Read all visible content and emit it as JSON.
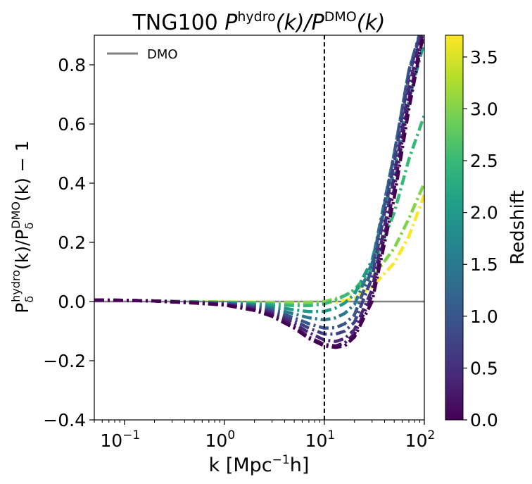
{
  "chart_data": {
    "type": "line",
    "title": {
      "prefix": "TNG100 ",
      "p1": "P",
      "sup1": "hydro",
      "k1": "(k)/",
      "p2": "P",
      "sup2": "DMO",
      "k2": "(k)"
    },
    "xlabel": {
      "pre": "k [Mpc",
      "sup": "−1",
      "post": "h]"
    },
    "ylabel": {
      "p1": "P",
      "sub1": "δ",
      "sup1": "hydro",
      "mid": "(k)/P",
      "sub2": "δ",
      "sup2": "DMO",
      "post": "(k) − 1"
    },
    "x_scale": "log",
    "xlim": [
      0.05,
      100
    ],
    "ylim": [
      -0.4,
      0.9
    ],
    "x_ticks": [
      {
        "value": 0.1,
        "base": "10",
        "exp": "−1"
      },
      {
        "value": 1,
        "base": "10",
        "exp": "0"
      },
      {
        "value": 10,
        "base": "10",
        "exp": "1"
      },
      {
        "value": 100,
        "base": "10",
        "exp": "2"
      }
    ],
    "y_ticks": [
      {
        "value": -0.4,
        "label": "−0.4"
      },
      {
        "value": -0.2,
        "label": "−0.2"
      },
      {
        "value": 0.0,
        "label": "0.0"
      },
      {
        "value": 0.2,
        "label": "0.2"
      },
      {
        "value": 0.4,
        "label": "0.4"
      },
      {
        "value": 0.6,
        "label": "0.6"
      },
      {
        "value": 0.8,
        "label": "0.8"
      }
    ],
    "reference_lines": [
      {
        "orientation": "horizontal",
        "value": 0,
        "color": "#808080",
        "style": "solid"
      },
      {
        "orientation": "vertical",
        "value": 10,
        "color": "#000000",
        "style": "dashed"
      }
    ],
    "legend": {
      "position": "top-left",
      "entries": [
        {
          "label": "DMO",
          "color": "#808080"
        }
      ]
    },
    "colorbar": {
      "label": "Redshift",
      "range": [
        0,
        3.71
      ],
      "ticks": [
        "0.0",
        "0.5",
        "1.0",
        "1.5",
        "2.0",
        "2.5",
        "3.0",
        "3.5"
      ],
      "tick_values": [
        0,
        0.5,
        1.0,
        1.5,
        2.0,
        2.5,
        3.0,
        3.5
      ],
      "colormap": [
        "#440154",
        "#482878",
        "#3e4989",
        "#31688e",
        "#26828e",
        "#1f9e89",
        "#35b779",
        "#6ece58",
        "#b5de2b",
        "#fde725"
      ]
    },
    "line_style": "dashdot",
    "x": [
      0.05,
      0.1,
      0.2,
      0.5,
      1,
      2,
      3,
      5,
      7,
      10,
      13,
      16,
      20,
      30,
      50,
      70,
      100
    ],
    "series": [
      {
        "z": 0.0,
        "values": [
          0.005,
          0.004,
          0.002,
          -0.005,
          -0.012,
          -0.03,
          -0.05,
          -0.09,
          -0.125,
          -0.15,
          -0.155,
          -0.15,
          -0.12,
          0.0,
          0.35,
          0.65,
          0.92
        ]
      },
      {
        "z": 0.2,
        "values": [
          0.005,
          0.004,
          0.002,
          -0.005,
          -0.011,
          -0.028,
          -0.045,
          -0.085,
          -0.12,
          -0.145,
          -0.15,
          -0.14,
          -0.11,
          0.02,
          0.38,
          0.68,
          0.93
        ]
      },
      {
        "z": 0.4,
        "values": [
          0.005,
          0.004,
          0.002,
          -0.004,
          -0.01,
          -0.025,
          -0.04,
          -0.075,
          -0.105,
          -0.13,
          -0.135,
          -0.125,
          -0.095,
          0.04,
          0.42,
          0.72,
          0.95
        ]
      },
      {
        "z": 0.7,
        "values": [
          0.005,
          0.004,
          0.002,
          -0.004,
          -0.009,
          -0.021,
          -0.035,
          -0.065,
          -0.09,
          -0.11,
          -0.11,
          -0.1,
          -0.07,
          0.08,
          0.47,
          0.76,
          0.96
        ]
      },
      {
        "z": 1.0,
        "values": [
          0.005,
          0.004,
          0.002,
          -0.003,
          -0.007,
          -0.018,
          -0.03,
          -0.055,
          -0.075,
          -0.09,
          -0.088,
          -0.075,
          -0.045,
          0.11,
          0.5,
          0.78,
          0.96
        ]
      },
      {
        "z": 1.5,
        "values": [
          0.005,
          0.004,
          0.002,
          -0.002,
          -0.005,
          -0.014,
          -0.023,
          -0.042,
          -0.055,
          -0.062,
          -0.055,
          -0.04,
          -0.01,
          0.13,
          0.5,
          0.78,
          0.95
        ]
      },
      {
        "z": 2.0,
        "values": [
          0.005,
          0.004,
          0.002,
          -0.002,
          -0.004,
          -0.01,
          -0.016,
          -0.028,
          -0.034,
          -0.033,
          -0.022,
          -0.005,
          0.025,
          0.14,
          0.44,
          0.68,
          0.88
        ]
      },
      {
        "z": 2.5,
        "values": [
          0.005,
          0.004,
          0.002,
          -0.001,
          -0.003,
          -0.006,
          -0.009,
          -0.014,
          -0.014,
          -0.008,
          0.005,
          0.02,
          0.04,
          0.11,
          0.3,
          0.48,
          0.63
        ]
      },
      {
        "z": 3.0,
        "values": [
          0.005,
          0.004,
          0.002,
          -0.001,
          -0.002,
          -0.003,
          -0.004,
          -0.005,
          -0.003,
          0.0,
          0.01,
          0.02,
          0.035,
          0.08,
          0.18,
          0.28,
          0.4
        ]
      },
      {
        "z": 3.7,
        "values": [
          0.005,
          0.004,
          0.002,
          0.0,
          -0.001,
          -0.002,
          -0.003,
          -0.004,
          -0.003,
          -0.004,
          -0.002,
          0.003,
          0.012,
          0.05,
          0.13,
          0.22,
          0.36
        ]
      }
    ]
  }
}
